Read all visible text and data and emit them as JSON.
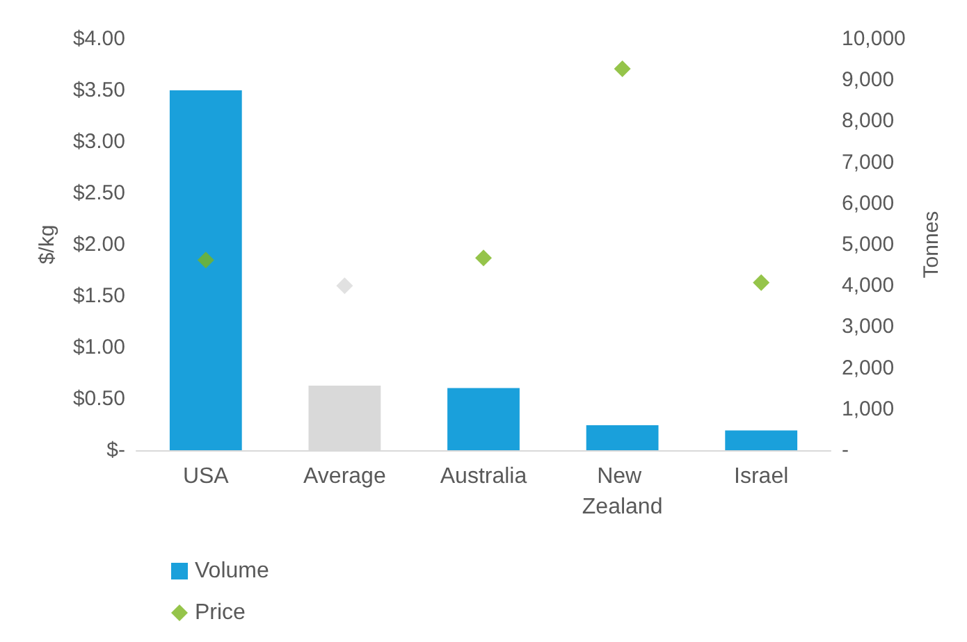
{
  "chart_data": {
    "type": "bar",
    "ylabel": "$/kg",
    "y2label": "Tonnes",
    "categories": [
      "USA",
      "Average",
      "Australia",
      "New Zealand",
      "Israel"
    ],
    "series": [
      {
        "name": "Volume",
        "axis": "y2",
        "color": "#1aa0db",
        "colors": [
          "#1aa0db",
          "#d9d9d9",
          "#1aa0db",
          "#1aa0db",
          "#1aa0db"
        ],
        "values": [
          8750,
          1570,
          1510,
          610,
          480
        ]
      },
      {
        "name": "Price",
        "type": "scatter",
        "axis": "y",
        "marker": "diamond",
        "color": "#7ab51d",
        "colors": [
          "#7ab51d",
          "#d9d9d9",
          "#7ab51d",
          "#7ab51d",
          "#7ab51d"
        ],
        "values": [
          1.85,
          1.6,
          1.87,
          3.71,
          1.63
        ]
      }
    ],
    "ylim": [
      0,
      4
    ],
    "yticks": [
      {
        "value": 0,
        "label": "$-"
      },
      {
        "value": 0.5,
        "label": "$0.50"
      },
      {
        "value": 1,
        "label": "$1.00"
      },
      {
        "value": 1.5,
        "label": "$1.50"
      },
      {
        "value": 2,
        "label": "$2.00"
      },
      {
        "value": 2.5,
        "label": "$2.50"
      },
      {
        "value": 3,
        "label": "$3.00"
      },
      {
        "value": 3.5,
        "label": "$3.50"
      },
      {
        "value": 4,
        "label": "$4.00"
      }
    ],
    "y2lim": [
      0,
      10000
    ],
    "y2ticks": [
      {
        "value": 0,
        "label": "-"
      },
      {
        "value": 1000,
        "label": "1,000"
      },
      {
        "value": 2000,
        "label": "2,000"
      },
      {
        "value": 3000,
        "label": "3,000"
      },
      {
        "value": 4000,
        "label": "4,000"
      },
      {
        "value": 5000,
        "label": "5,000"
      },
      {
        "value": 6000,
        "label": "6,000"
      },
      {
        "value": 7000,
        "label": "7,000"
      },
      {
        "value": 8000,
        "label": "8,000"
      },
      {
        "value": 9000,
        "label": "9,000"
      },
      {
        "value": 10000,
        "label": "10,000"
      }
    ],
    "grid": false,
    "legend": "bottom left"
  }
}
